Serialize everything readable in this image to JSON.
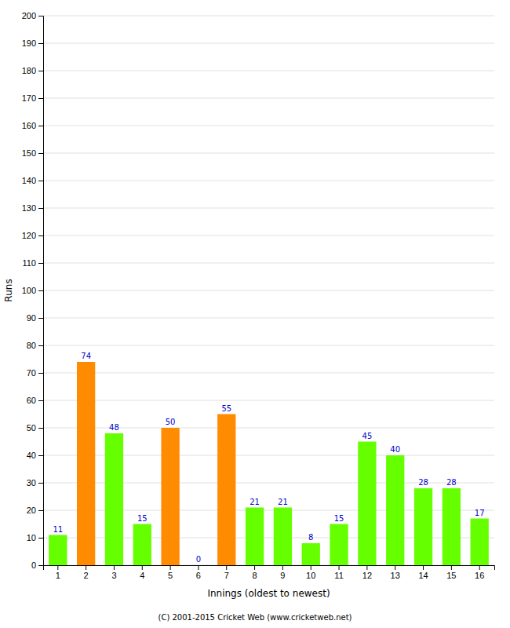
{
  "chart_data": {
    "type": "bar",
    "xlabel": "Innings (oldest to newest)",
    "ylabel": "Runs",
    "footer": "(C) 2001-2015 Cricket Web (www.cricketweb.net)",
    "categories": [
      "1",
      "2",
      "3",
      "4",
      "5",
      "6",
      "7",
      "8",
      "9",
      "10",
      "11",
      "12",
      "13",
      "14",
      "15",
      "16"
    ],
    "values": [
      11,
      74,
      48,
      15,
      50,
      0,
      55,
      21,
      21,
      8,
      15,
      45,
      40,
      28,
      28,
      17
    ],
    "colors": [
      "#66ff00",
      "#ff8c00",
      "#66ff00",
      "#66ff00",
      "#ff8c00",
      "#66ff00",
      "#ff8c00",
      "#66ff00",
      "#66ff00",
      "#66ff00",
      "#66ff00",
      "#66ff00",
      "#66ff00",
      "#66ff00",
      "#66ff00",
      "#66ff00"
    ],
    "ylim": [
      0,
      200
    ],
    "yticks": [
      0,
      10,
      20,
      30,
      40,
      50,
      60,
      70,
      80,
      90,
      100,
      110,
      120,
      130,
      140,
      150,
      160,
      170,
      180,
      190,
      200
    ],
    "grid": true,
    "data_labels": true
  }
}
